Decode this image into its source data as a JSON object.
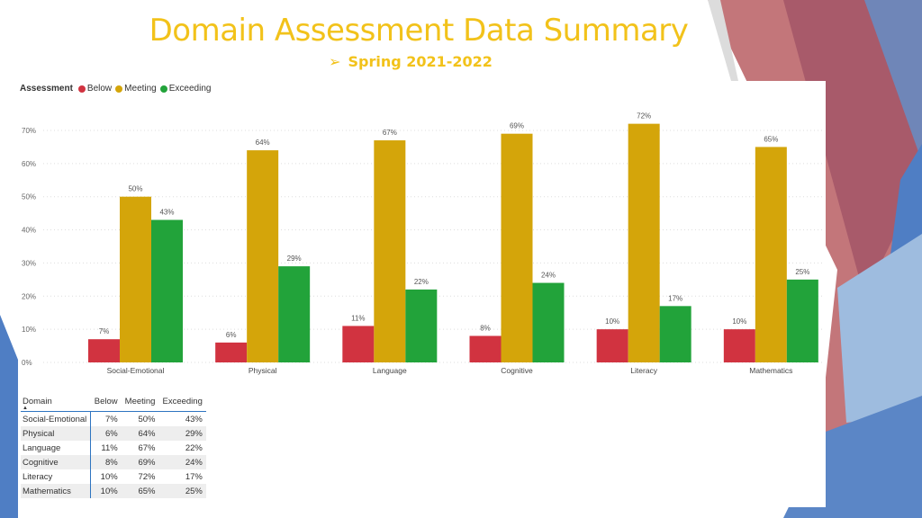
{
  "header": {
    "title": "Domain Assessment Data Summary",
    "subtitle": "Spring 2021-2022"
  },
  "legend": {
    "title": "Assessment",
    "items": [
      {
        "label": "Below",
        "color": "#d13340"
      },
      {
        "label": "Meeting",
        "color": "#d4a50a"
      },
      {
        "label": "Exceeding",
        "color": "#22a33a"
      }
    ]
  },
  "chart_data": {
    "type": "bar",
    "categories": [
      "Social-Emotional",
      "Physical",
      "Language",
      "Cognitive",
      "Literacy",
      "Mathematics"
    ],
    "series": [
      {
        "name": "Below",
        "color": "#d13340",
        "values": [
          7,
          6,
          11,
          8,
          10,
          10
        ]
      },
      {
        "name": "Meeting",
        "color": "#d4a50a",
        "values": [
          50,
          64,
          67,
          69,
          72,
          65
        ]
      },
      {
        "name": "Exceeding",
        "color": "#22a33a",
        "values": [
          43,
          29,
          22,
          24,
          17,
          25
        ]
      }
    ],
    "yticks": [
      "0%",
      "10%",
      "20%",
      "30%",
      "40%",
      "50%",
      "60%",
      "70%"
    ],
    "ylim": [
      0,
      75
    ],
    "data_labels": true,
    "grid": true,
    "legend_position": "top-left"
  },
  "table": {
    "headers": [
      "Domain",
      "Below",
      "Meeting",
      "Exceeding"
    ],
    "rows": [
      [
        "Social-Emotional",
        "7%",
        "50%",
        "43%"
      ],
      [
        "Physical",
        "6%",
        "64%",
        "29%"
      ],
      [
        "Language",
        "11%",
        "67%",
        "22%"
      ],
      [
        "Cognitive",
        "8%",
        "69%",
        "24%"
      ],
      [
        "Literacy",
        "10%",
        "72%",
        "17%"
      ],
      [
        "Mathematics",
        "10%",
        "65%",
        "25%"
      ]
    ]
  }
}
